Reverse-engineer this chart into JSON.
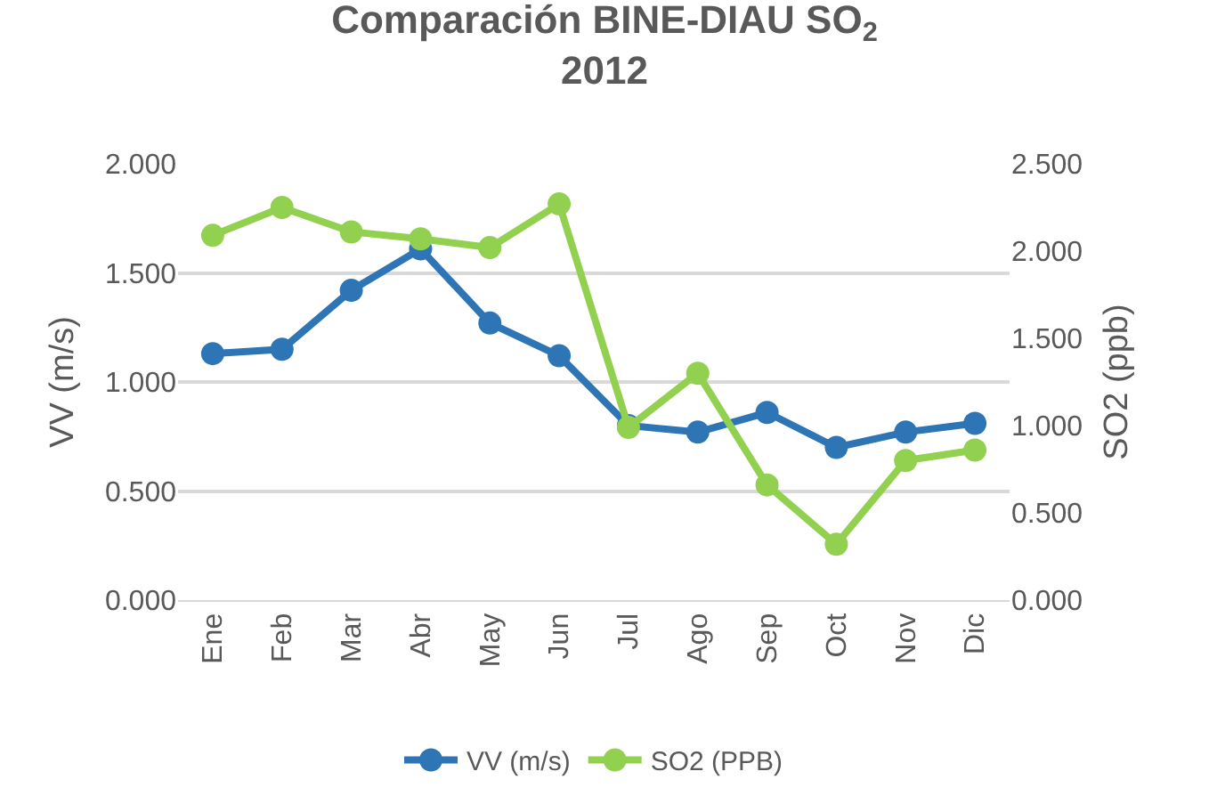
{
  "chart_data": {
    "type": "line",
    "title": "Comparación BINE-DIAU SO$_{2}$\n2012",
    "categories": [
      "Ene",
      "Feb",
      "Mar",
      "Abr",
      "May",
      "Jun",
      "Jul",
      "Ago",
      "Sep",
      "Oct",
      "Nov",
      "Dic"
    ],
    "series": [
      {
        "name": "VV (m/s)",
        "color": "#2e75b6",
        "values": [
          1.13,
          1.15,
          1.42,
          1.61,
          1.27,
          1.12,
          0.8,
          0.77,
          0.86,
          0.7,
          0.77,
          0.81
        ]
      },
      {
        "name": "SO2 (PPB)",
        "color": "#92d050",
        "axis": "y2",
        "values": [
          2.09,
          2.25,
          2.11,
          2.07,
          2.02,
          2.27,
          0.99,
          1.3,
          0.66,
          0.32,
          0.8,
          0.86
        ]
      }
    ],
    "ylabel": "VV (m/s)",
    "y2label": "SO2 (ppb)",
    "ylim": [
      0,
      2
    ],
    "yticks": [
      {
        "value": 0,
        "label": "0.000"
      },
      {
        "value": 0.5,
        "label": "0.500"
      },
      {
        "value": 1,
        "label": "1.000"
      },
      {
        "value": 1.5,
        "label": "1.500"
      },
      {
        "value": 2,
        "label": "2.000"
      }
    ],
    "y2lim": [
      0,
      2.5
    ],
    "y2ticks": [
      {
        "value": 0,
        "label": "0.000"
      },
      {
        "value": 0.5,
        "label": "0.500"
      },
      {
        "value": 1,
        "label": "1.000"
      },
      {
        "value": 1.5,
        "label": "1.500"
      },
      {
        "value": 2,
        "label": "2.000"
      },
      {
        "value": 2.5,
        "label": "2.500"
      }
    ],
    "grid": "y",
    "legend": "bottom",
    "marker": "circle",
    "line_style": "solid"
  }
}
